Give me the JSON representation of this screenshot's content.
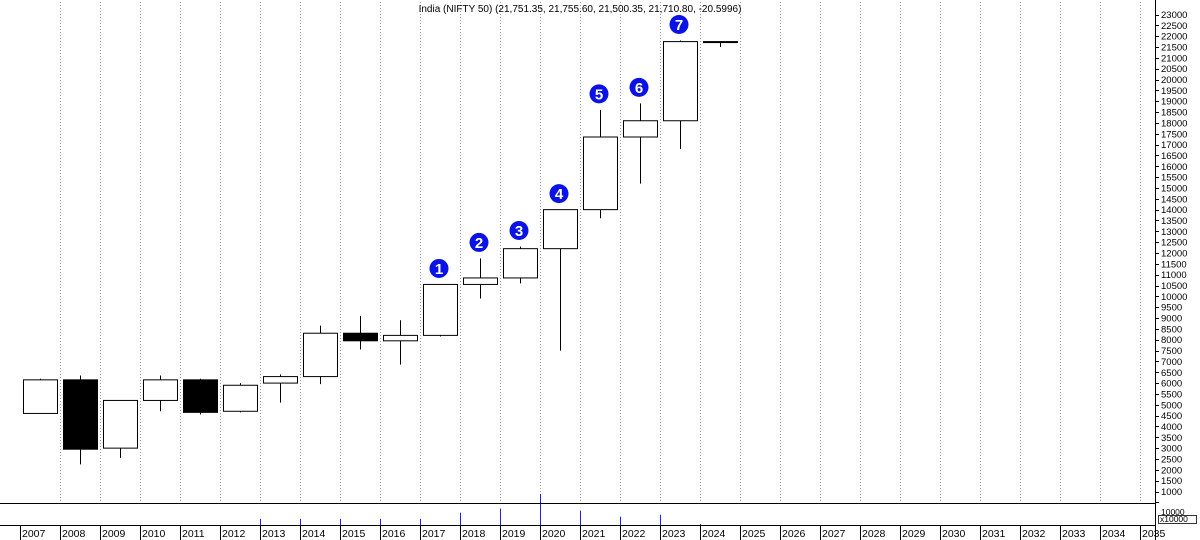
{
  "chart_data": {
    "type": "candlestick",
    "title": "India (NIFTY 50) (21,751.35, 21,755.60, 21,500.35, 21,710.80, -20.5996)",
    "years": [
      "2007",
      "2008",
      "2009",
      "2010",
      "2011",
      "2012",
      "2013",
      "2014",
      "2015",
      "2016",
      "2017",
      "2018",
      "2019",
      "2020",
      "2021",
      "2022",
      "2023",
      "2024",
      "2025",
      "2026",
      "2027",
      "2028",
      "2029",
      "2030",
      "2031",
      "2032",
      "2033",
      "2034",
      "2035"
    ],
    "candles": [
      {
        "year": "2007",
        "open": 4600,
        "high": 6200,
        "low": 4600,
        "close": 6150
      },
      {
        "year": "2008",
        "open": 6150,
        "high": 6350,
        "low": 2250,
        "close": 2950
      },
      {
        "year": "2009",
        "open": 3000,
        "high": 5200,
        "low": 2550,
        "close": 5200
      },
      {
        "year": "2010",
        "open": 5200,
        "high": 6350,
        "low": 4700,
        "close": 6150
      },
      {
        "year": "2011",
        "open": 6150,
        "high": 6200,
        "low": 4550,
        "close": 4650
      },
      {
        "year": "2012",
        "open": 4700,
        "high": 6000,
        "low": 4650,
        "close": 5900
      },
      {
        "year": "2013",
        "open": 6000,
        "high": 6400,
        "low": 5100,
        "close": 6300
      },
      {
        "year": "2014",
        "open": 6300,
        "high": 8650,
        "low": 5950,
        "close": 8300
      },
      {
        "year": "2015",
        "open": 8300,
        "high": 9100,
        "low": 7550,
        "close": 7950
      },
      {
        "year": "2016",
        "open": 7950,
        "high": 8900,
        "low": 6850,
        "close": 8200
      },
      {
        "year": "2017",
        "open": 8200,
        "high": 10550,
        "low": 8150,
        "close": 10550
      },
      {
        "year": "2018",
        "open": 10550,
        "high": 11750,
        "low": 9900,
        "close": 10850
      },
      {
        "year": "2019",
        "open": 10850,
        "high": 12300,
        "low": 10600,
        "close": 12200
      },
      {
        "year": "2020",
        "open": 12200,
        "high": 14000,
        "low": 7500,
        "close": 14000
      },
      {
        "year": "2021",
        "open": 14000,
        "high": 18600,
        "low": 13600,
        "close": 17350
      },
      {
        "year": "2022",
        "open": 17350,
        "high": 18900,
        "low": 15200,
        "close": 18100
      },
      {
        "year": "2023",
        "open": 18100,
        "high": 21800,
        "low": 16800,
        "close": 21750
      },
      {
        "year": "2024",
        "open": 21751.35,
        "high": 21755.6,
        "low": 21500.35,
        "close": 21710.8
      }
    ],
    "annotations": [
      {
        "label": "1",
        "year": "2017",
        "value": 10550
      },
      {
        "label": "2",
        "year": "2018",
        "value": 11750
      },
      {
        "label": "3",
        "year": "2019",
        "value": 12300
      },
      {
        "label": "4",
        "year": "2020",
        "value": 14000
      },
      {
        "label": "5",
        "year": "2021",
        "value": 18600
      },
      {
        "label": "6",
        "year": "2022",
        "value": 18900
      },
      {
        "label": "7",
        "year": "2023",
        "value": 21800
      }
    ],
    "ylim": [
      0,
      23500
    ],
    "ytick_step": 500,
    "ytick_labels": [
      "1000",
      "1500",
      "2000",
      "2500",
      "3000",
      "3500",
      "4000",
      "4500",
      "5000",
      "5500",
      "6000",
      "6500",
      "7000",
      "7500",
      "8000",
      "8500",
      "9000",
      "9500",
      "10000",
      "10500",
      "11000",
      "11500",
      "12000",
      "12500",
      "13000",
      "13500",
      "14000",
      "14500",
      "15000",
      "15500",
      "16000",
      "16500",
      "17000",
      "17500",
      "18000",
      "18500",
      "19000",
      "19500",
      "20000",
      "20500",
      "21000",
      "21500",
      "22000",
      "22500",
      "23000"
    ],
    "volume_panel": {
      "tick_label": "10000",
      "unit_label": "x10000",
      "ylim": [
        0,
        16000
      ],
      "values": [
        {
          "year": "2007",
          "value": 0
        },
        {
          "year": "2008",
          "value": 0
        },
        {
          "year": "2009",
          "value": 0
        },
        {
          "year": "2010",
          "value": 0
        },
        {
          "year": "2011",
          "value": 0
        },
        {
          "year": "2012",
          "value": 0
        },
        {
          "year": "2013",
          "value": 3000
        },
        {
          "year": "2014",
          "value": 3000
        },
        {
          "year": "2015",
          "value": 3000
        },
        {
          "year": "2016",
          "value": 3000
        },
        {
          "year": "2017",
          "value": 3000
        },
        {
          "year": "2018",
          "value": 6000
        },
        {
          "year": "2019",
          "value": 8000
        },
        {
          "year": "2020",
          "value": 15000
        },
        {
          "year": "2021",
          "value": 7000
        },
        {
          "year": "2022",
          "value": 4000
        },
        {
          "year": "2023",
          "value": 5000
        },
        {
          "year": "2024",
          "value": 500
        }
      ]
    },
    "grid": true,
    "colors": {
      "up": "#ffffff",
      "down": "#000000",
      "outline": "#000000",
      "annotation": "#0a12e6",
      "volume": "#2020e0",
      "grid": "#9a9a9a"
    }
  }
}
